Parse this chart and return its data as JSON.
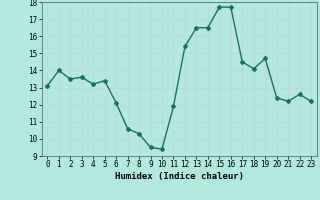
{
  "x": [
    0,
    1,
    2,
    3,
    4,
    5,
    6,
    7,
    8,
    9,
    10,
    11,
    12,
    13,
    14,
    15,
    16,
    17,
    18,
    19,
    20,
    21,
    22,
    23
  ],
  "y": [
    13.1,
    14.0,
    13.5,
    13.6,
    13.2,
    13.4,
    12.1,
    10.6,
    10.3,
    9.5,
    9.4,
    11.9,
    15.4,
    16.5,
    16.5,
    17.7,
    17.7,
    14.5,
    14.1,
    14.7,
    12.4,
    12.2,
    12.6,
    12.2
  ],
  "xlabel": "Humidex (Indice chaleur)",
  "line_color": "#1a7060",
  "bg_color": "#b2e8e0",
  "grid_color": "#c0d8d0",
  "ylim": [
    9,
    18
  ],
  "xlim": [
    -0.5,
    23.5
  ],
  "yticks": [
    9,
    10,
    11,
    12,
    13,
    14,
    15,
    16,
    17,
    18
  ],
  "xticks": [
    0,
    1,
    2,
    3,
    4,
    5,
    6,
    7,
    8,
    9,
    10,
    11,
    12,
    13,
    14,
    15,
    16,
    17,
    18,
    19,
    20,
    21,
    22,
    23
  ],
  "marker": "D",
  "markersize": 2.0,
  "linewidth": 1.0,
  "tick_fontsize": 5.5,
  "xlabel_fontsize": 6.5
}
